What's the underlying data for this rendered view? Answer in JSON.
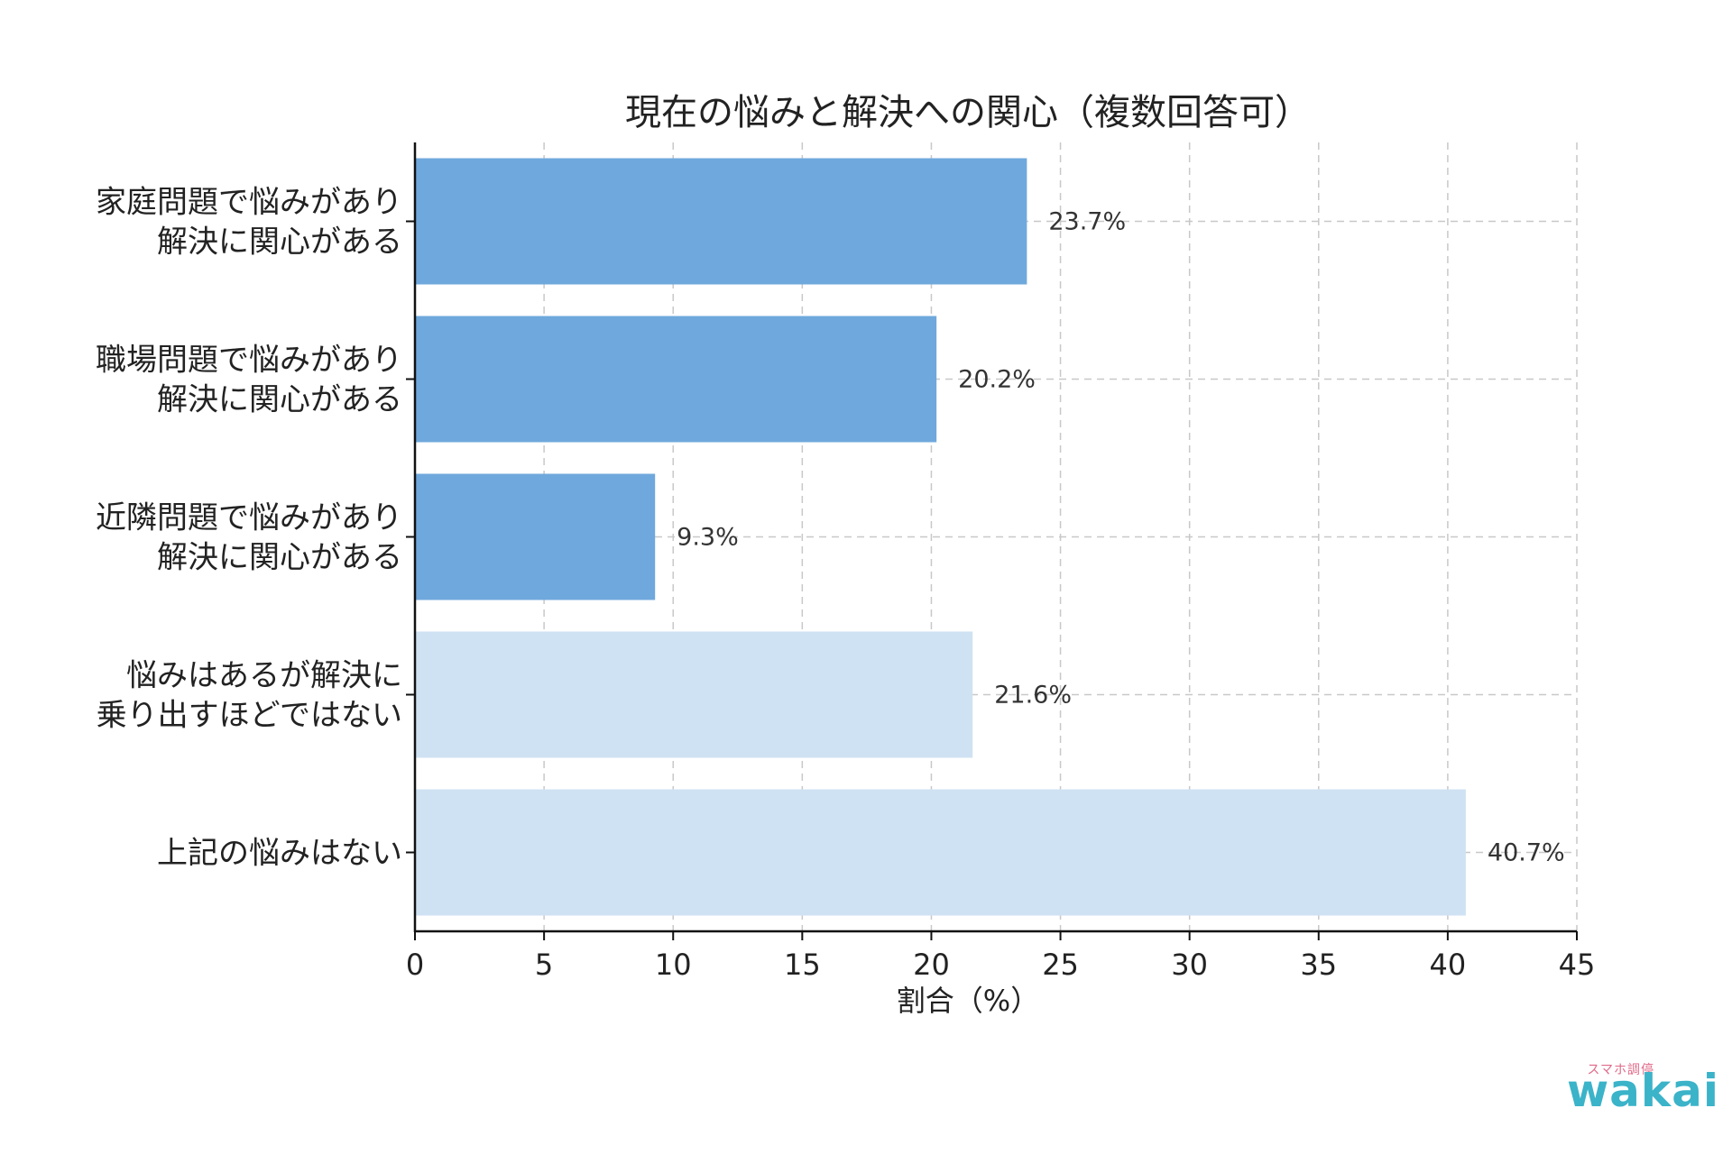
{
  "chart_data": {
    "type": "bar",
    "orientation": "horizontal",
    "title": "現在の悩みと解決への関心（複数回答可）",
    "xlabel": "割合（%）",
    "ylabel": "",
    "xlim": [
      0,
      45
    ],
    "x_ticks": [
      0,
      5,
      10,
      15,
      20,
      25,
      30,
      35,
      40,
      45
    ],
    "grid": true,
    "categories": [
      [
        "家庭問題で悩みがあり",
        "解決に関心がある"
      ],
      [
        "職場問題で悩みがあり",
        "解決に関心がある"
      ],
      [
        "近隣問題で悩みがあり",
        "解決に関心がある"
      ],
      [
        "悩みはあるが解決に",
        "乗り出すほどではない"
      ],
      [
        "上記の悩みはない"
      ]
    ],
    "values": [
      23.7,
      20.2,
      9.3,
      21.6,
      40.7
    ],
    "data_labels": [
      "23.7%",
      "20.2%",
      "9.3%",
      "21.6%",
      "40.7%"
    ],
    "bar_colors": [
      "#6fa8dc",
      "#6fa8dc",
      "#6fa8dc",
      "#cfe2f3",
      "#cfe2f3"
    ]
  },
  "logo": {
    "sub": "スマホ調停",
    "main": "wakai"
  }
}
